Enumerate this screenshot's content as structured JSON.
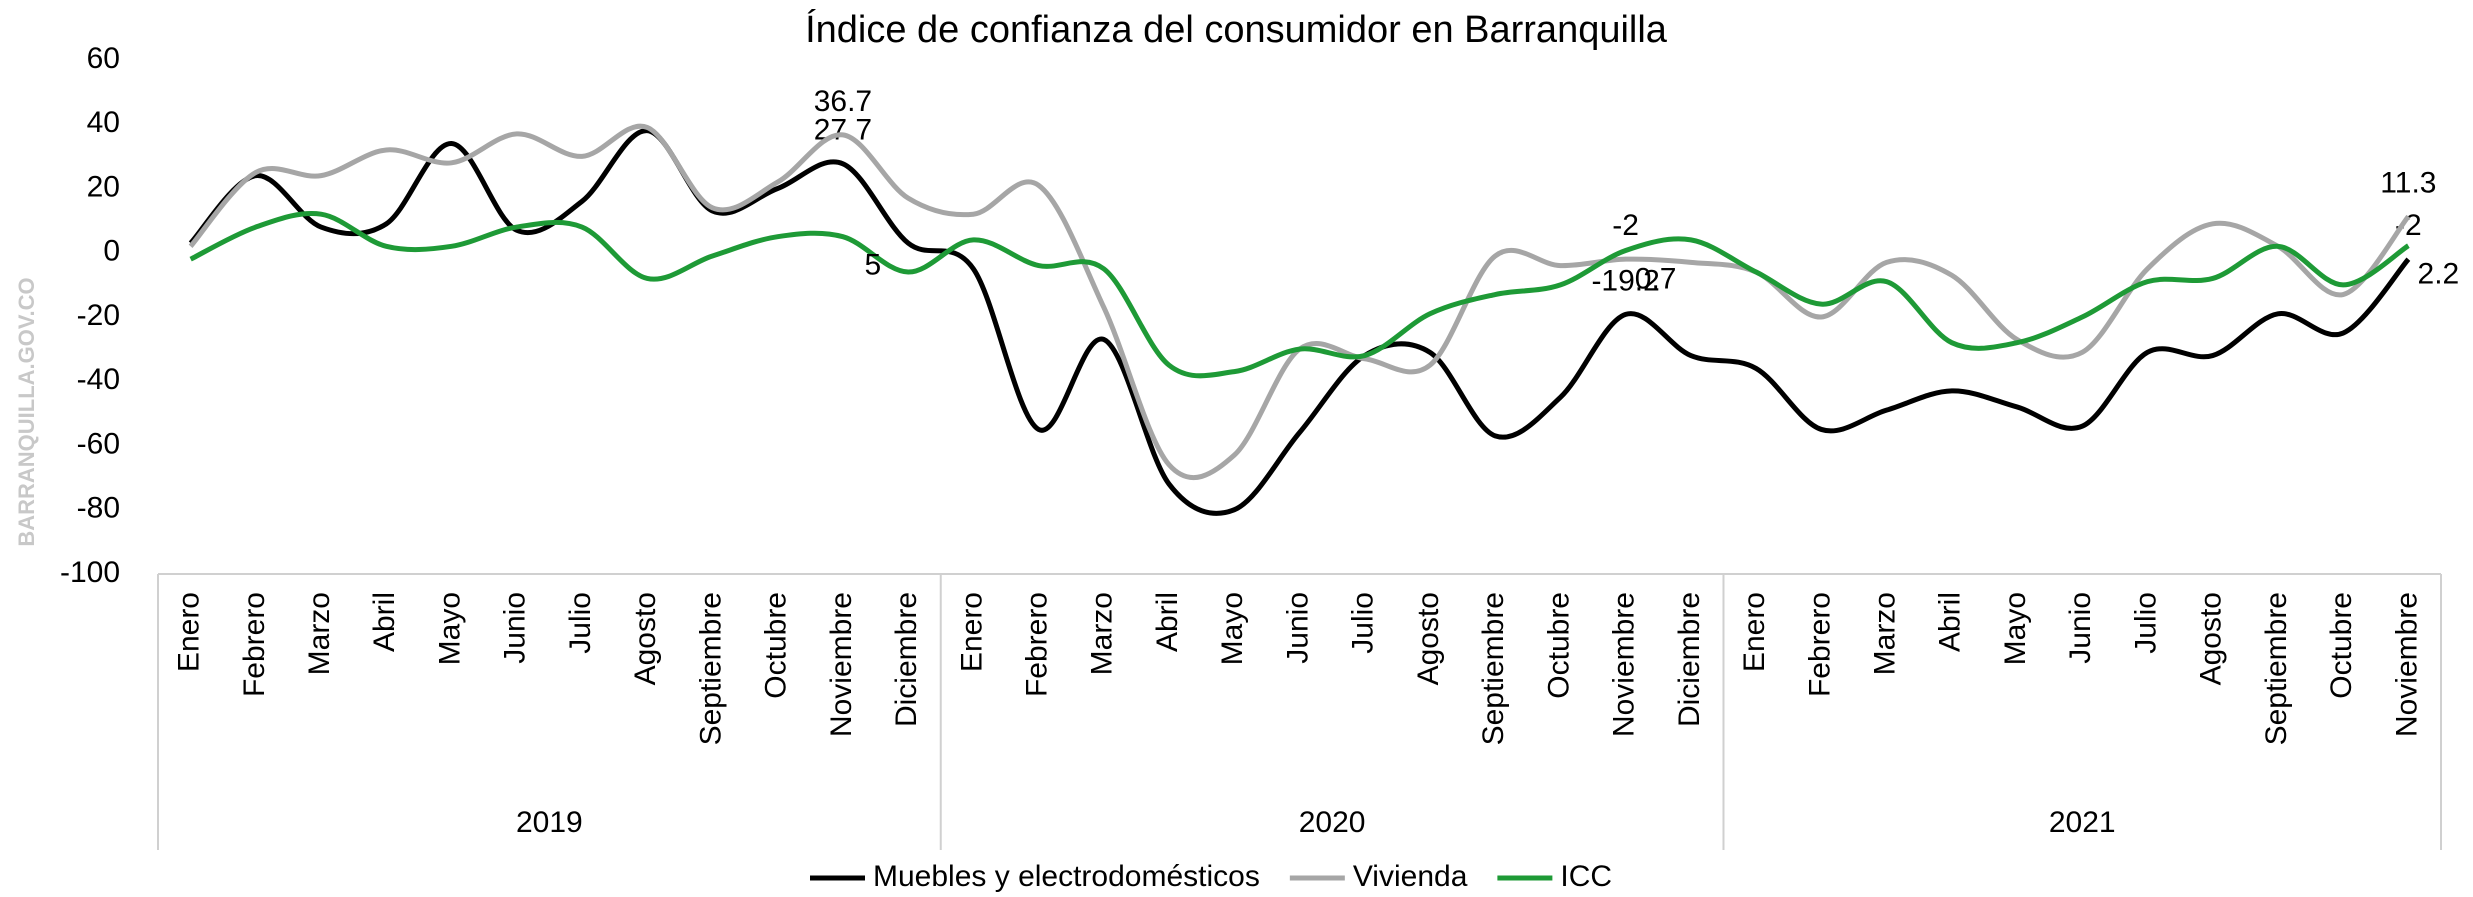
{
  "chart_data": {
    "type": "line",
    "title": "Índice de confianza del consumidor en Barranquilla",
    "watermark": "BARRANQUILLA.GOV.CO",
    "groups": [
      {
        "label": "2019",
        "categories": [
          "Enero",
          "Febrero",
          "Marzo",
          "Abril",
          "Mayo",
          "Junio",
          "Julio",
          "Agosto",
          "Septiembre",
          "Octubre",
          "Noviembre",
          "Diciembre"
        ]
      },
      {
        "label": "2020",
        "categories": [
          "Enero",
          "Febrero",
          "Marzo",
          "Abril",
          "Mayo",
          "Junio",
          "Julio",
          "Agosto",
          "Septiembre",
          "Octubre",
          "Noviembre",
          "Diciembre"
        ]
      },
      {
        "label": "2021",
        "categories": [
          "Enero",
          "Febrero",
          "Marzo",
          "Abril",
          "Mayo",
          "Junio",
          "Julio",
          "Agosto",
          "Septiembre",
          "Octubre",
          "Noviembre"
        ]
      }
    ],
    "series": [
      {
        "name": "Muebles y electrodomésticos",
        "color": "#000000",
        "values": [
          3,
          24,
          8,
          9,
          34,
          7,
          16,
          38,
          13,
          20,
          27.7,
          3,
          -5,
          -55,
          -27,
          -72,
          -80,
          -56,
          -32,
          -31,
          -57,
          -45,
          -19.2,
          -32,
          -36,
          -55,
          -49,
          -43,
          -48,
          -54,
          -31,
          -32,
          -19,
          -25,
          -2
        ],
        "value_labels": [
          null,
          null,
          null,
          null,
          null,
          null,
          null,
          null,
          null,
          null,
          "27.7",
          null,
          null,
          null,
          null,
          null,
          null,
          null,
          null,
          null,
          null,
          null,
          "-19.2",
          null,
          null,
          null,
          null,
          null,
          null,
          null,
          null,
          null,
          null,
          null,
          "-2"
        ]
      },
      {
        "name": "Vivienda",
        "color": "#a6a6a6",
        "values": [
          2,
          25,
          24,
          32,
          28,
          37,
          30,
          39,
          14,
          22,
          36.7,
          17,
          12,
          21,
          -17,
          -66,
          -63,
          -30,
          -33,
          -35,
          -1,
          -4,
          -2,
          -3,
          -6,
          -20,
          -3,
          -7,
          -27,
          -31,
          -5,
          9,
          2,
          -13,
          11.3
        ],
        "value_labels": [
          null,
          null,
          null,
          null,
          null,
          null,
          null,
          null,
          null,
          null,
          "36.7",
          null,
          null,
          null,
          null,
          null,
          null,
          null,
          null,
          null,
          null,
          null,
          "-2",
          null,
          null,
          null,
          null,
          null,
          null,
          null,
          null,
          null,
          null,
          null,
          "11.3"
        ]
      },
      {
        "name": "ICC",
        "color": "#1e9a36",
        "values": [
          -2,
          8,
          12,
          2,
          2,
          8,
          8,
          -8,
          -1,
          5,
          5,
          -6,
          4,
          -4,
          -5,
          -35,
          -37,
          -30,
          -32,
          -19,
          -13,
          -10,
          0.7,
          4,
          -6,
          -16,
          -9,
          -28,
          -28,
          -20,
          -9,
          -8,
          2,
          -10,
          2.2
        ],
        "value_labels": [
          null,
          null,
          null,
          null,
          null,
          null,
          null,
          null,
          null,
          null,
          "5",
          null,
          null,
          null,
          null,
          null,
          null,
          null,
          null,
          null,
          null,
          null,
          "0.7",
          null,
          null,
          null,
          null,
          null,
          null,
          null,
          null,
          null,
          null,
          null,
          "2.2"
        ]
      }
    ],
    "ylim": [
      -100,
      60
    ],
    "yticks": [
      -100,
      -80,
      -60,
      -40,
      -20,
      0,
      20,
      40,
      60
    ],
    "legend": "bottom",
    "grid": false
  }
}
